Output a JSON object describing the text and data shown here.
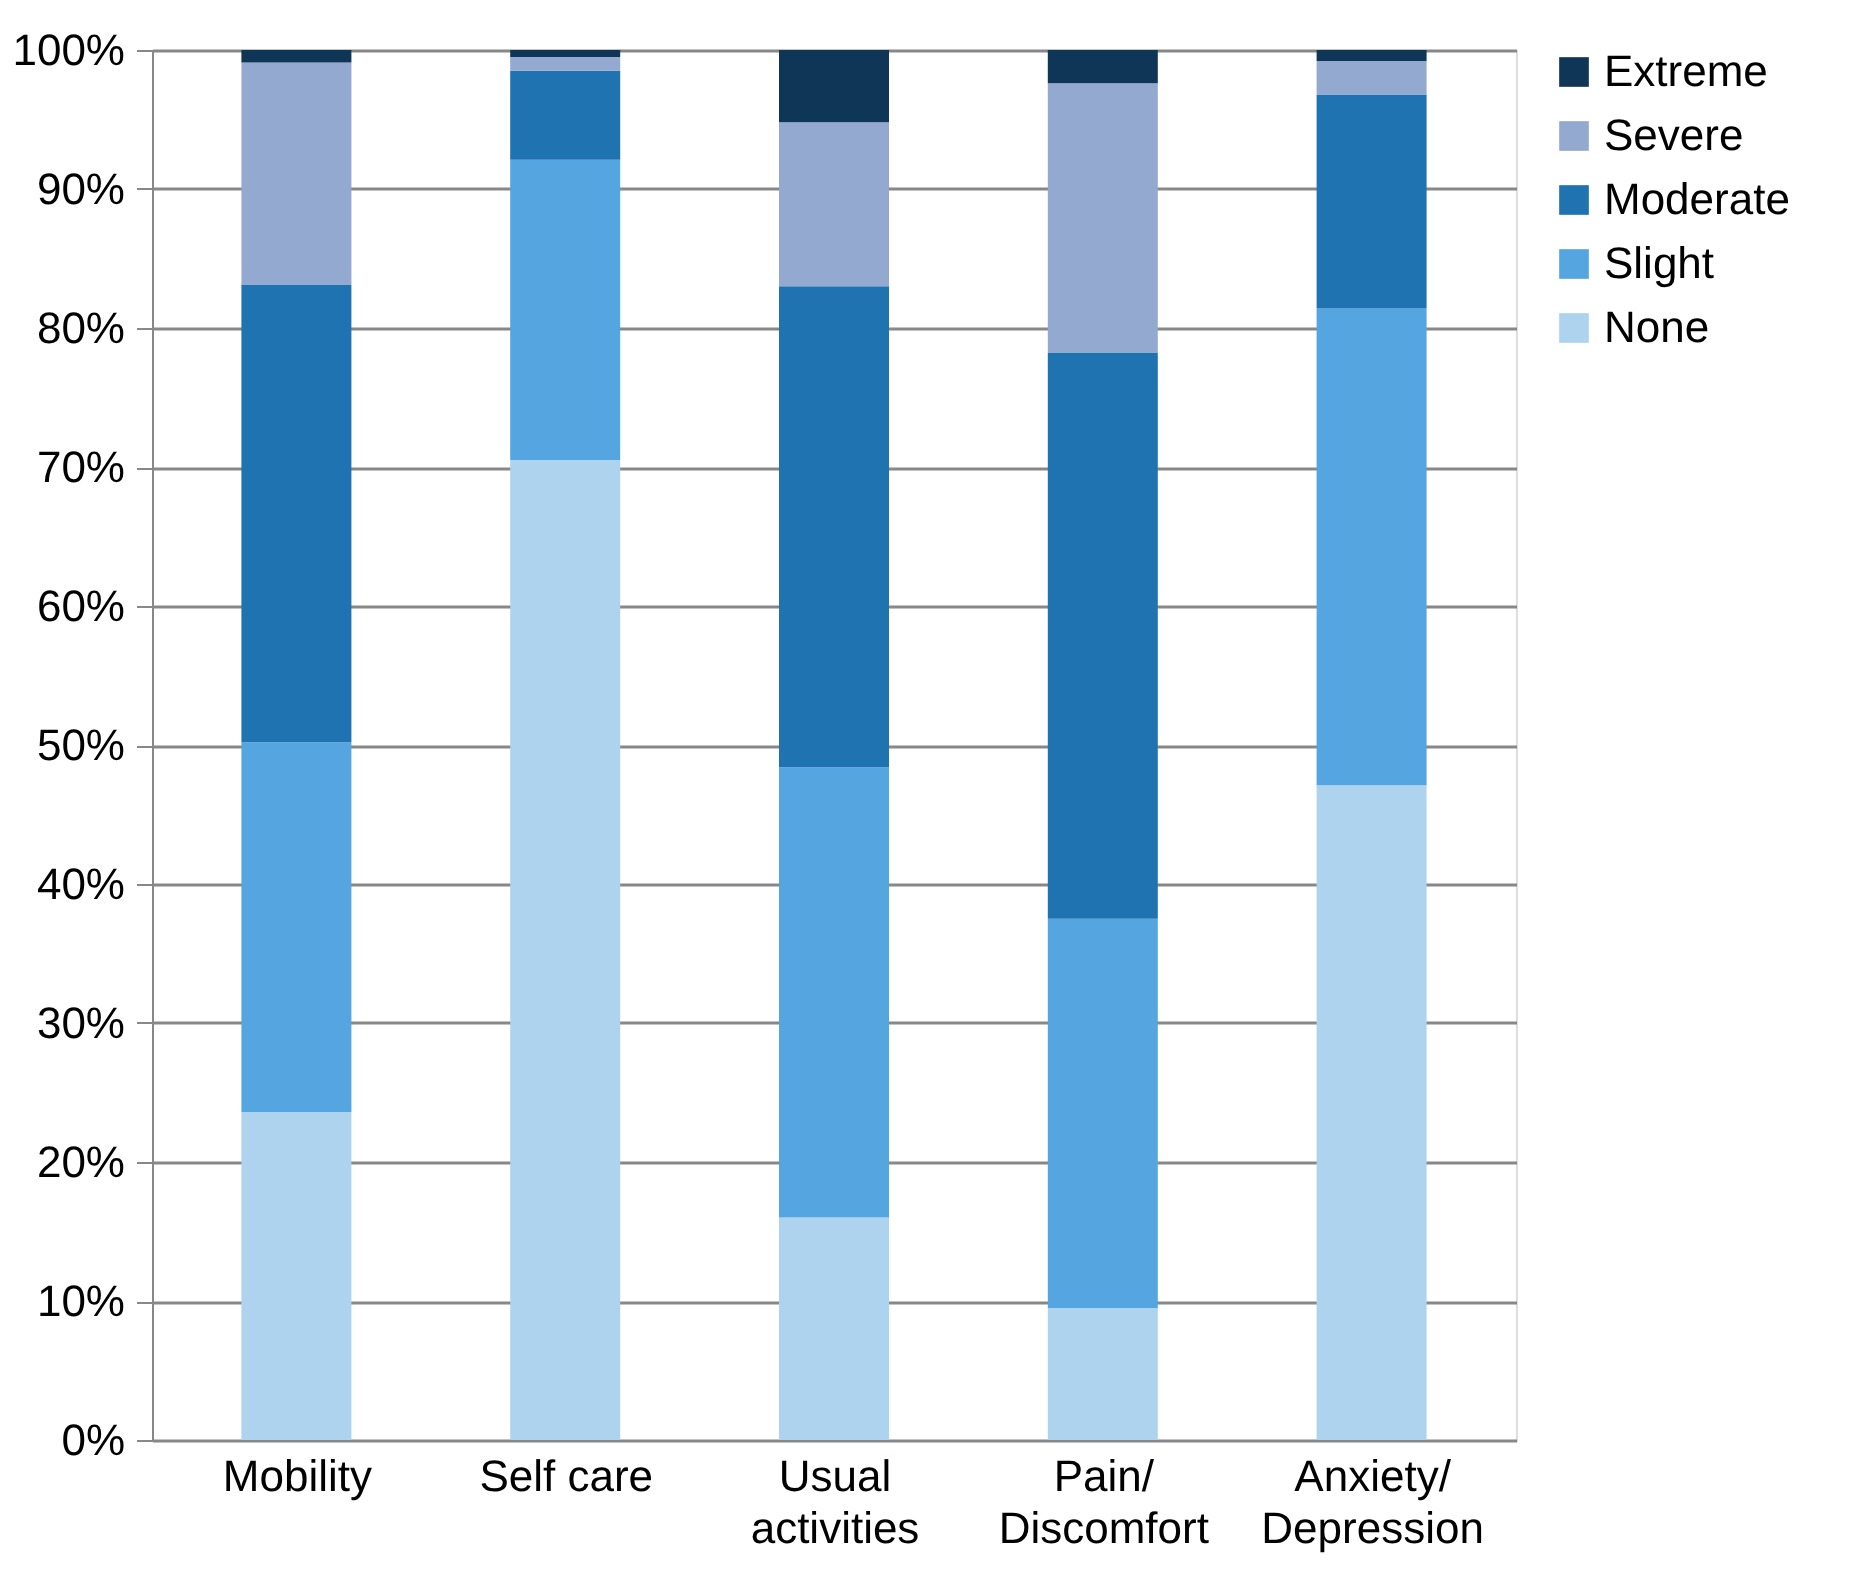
{
  "chart_data": {
    "type": "bar",
    "stacked": true,
    "categories": [
      "Mobility",
      "Self care",
      "Usual\nactivities",
      "Pain/\nDiscomfort",
      "Anxiety/\nDepression"
    ],
    "series": [
      {
        "name": "None",
        "color": "#aed3ef",
        "values": [
          23.6,
          70.5,
          16.0,
          9.5,
          47.1
        ]
      },
      {
        "name": "Slight",
        "color": "#55a5e0",
        "values": [
          26.6,
          21.6,
          32.4,
          28.0,
          34.3
        ]
      },
      {
        "name": "Moderate",
        "color": "#1f73b1",
        "values": [
          32.9,
          6.4,
          34.6,
          40.7,
          15.4
        ]
      },
      {
        "name": "Severe",
        "color": "#94a9d0",
        "values": [
          16.0,
          1.0,
          11.8,
          19.4,
          2.4
        ]
      },
      {
        "name": "Extreme",
        "color": "#0f3657",
        "values": [
          0.9,
          0.5,
          5.2,
          2.4,
          0.8
        ]
      }
    ],
    "ylim": [
      0,
      100
    ],
    "yticks": [
      {
        "value": 0,
        "label": "0%"
      },
      {
        "value": 10,
        "label": "10%"
      },
      {
        "value": 20,
        "label": "20%"
      },
      {
        "value": 30,
        "label": "30%"
      },
      {
        "value": 40,
        "label": "40%"
      },
      {
        "value": 50,
        "label": "50%"
      },
      {
        "value": 60,
        "label": "60%"
      },
      {
        "value": 70,
        "label": "70%"
      },
      {
        "value": 80,
        "label": "80%"
      },
      {
        "value": 90,
        "label": "90%"
      },
      {
        "value": 100,
        "label": "100%"
      }
    ],
    "grid": "y",
    "legend": "right"
  }
}
